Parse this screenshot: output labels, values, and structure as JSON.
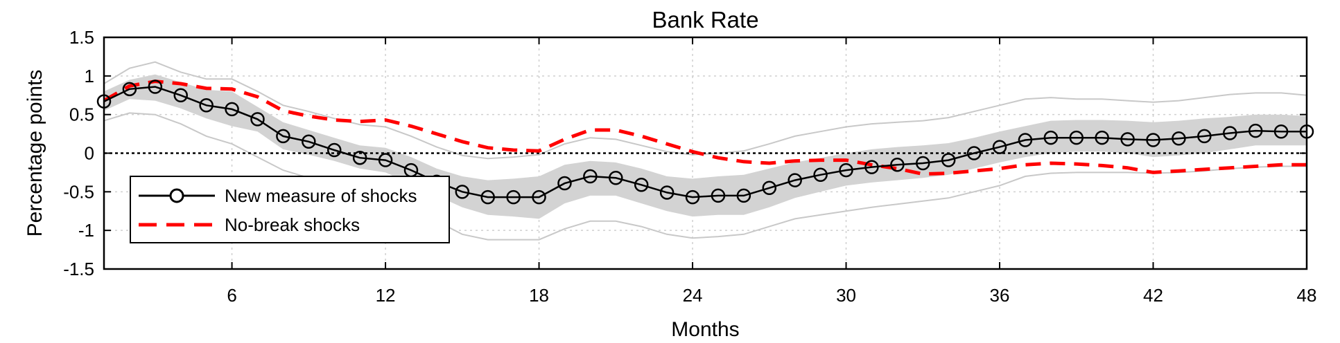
{
  "chart_data": {
    "type": "line",
    "title": "Bank Rate",
    "xlabel": "Months",
    "ylabel": "Percentage points",
    "xlim": [
      1,
      48
    ],
    "ylim": [
      -1.5,
      1.5
    ],
    "xticks": [
      6,
      12,
      18,
      24,
      30,
      36,
      42,
      48
    ],
    "yticks": [
      1.5,
      1,
      0.5,
      0,
      -0.5,
      -1,
      -1.5
    ],
    "ytick_labels": [
      "1.5",
      "1",
      "0.5",
      "0",
      "-0.5",
      "-1",
      "-1.5"
    ],
    "grid": true,
    "legend_position": "bottom-left",
    "x": [
      1,
      2,
      3,
      4,
      5,
      6,
      7,
      8,
      9,
      10,
      11,
      12,
      13,
      14,
      15,
      16,
      17,
      18,
      19,
      20,
      21,
      22,
      23,
      24,
      25,
      26,
      27,
      28,
      29,
      30,
      31,
      32,
      33,
      34,
      35,
      36,
      37,
      38,
      39,
      40,
      41,
      42,
      43,
      44,
      45,
      46,
      47,
      48
    ],
    "series": [
      {
        "name": "New measure of shocks",
        "color": "#000000",
        "style": "solid-circle-markers",
        "values": [
          0.67,
          0.83,
          0.86,
          0.75,
          0.62,
          0.57,
          0.44,
          0.22,
          0.15,
          0.04,
          -0.06,
          -0.09,
          -0.22,
          -0.37,
          -0.5,
          -0.57,
          -0.57,
          -0.57,
          -0.39,
          -0.3,
          -0.32,
          -0.41,
          -0.51,
          -0.57,
          -0.55,
          -0.55,
          -0.45,
          -0.35,
          -0.28,
          -0.22,
          -0.18,
          -0.15,
          -0.13,
          -0.09,
          0.0,
          0.08,
          0.17,
          0.2,
          0.2,
          0.2,
          0.18,
          0.17,
          0.19,
          0.22,
          0.26,
          0.29,
          0.28,
          0.28
        ]
      },
      {
        "name": "No-break shocks",
        "color": "#ff0000",
        "style": "dashed",
        "values": [
          0.68,
          0.87,
          0.93,
          0.9,
          0.84,
          0.83,
          0.73,
          0.55,
          0.48,
          0.43,
          0.41,
          0.43,
          0.35,
          0.25,
          0.15,
          0.07,
          0.04,
          0.03,
          0.18,
          0.3,
          0.3,
          0.22,
          0.12,
          0.02,
          -0.06,
          -0.11,
          -0.13,
          -0.1,
          -0.09,
          -0.09,
          -0.15,
          -0.2,
          -0.27,
          -0.26,
          -0.23,
          -0.2,
          -0.15,
          -0.13,
          -0.14,
          -0.16,
          -0.19,
          -0.25,
          -0.23,
          -0.21,
          -0.19,
          -0.17,
          -0.15,
          -0.15
        ]
      }
    ],
    "confidence_band": {
      "color": "#d3d3d3",
      "upper": [
        0.8,
        0.95,
        1.02,
        0.92,
        0.82,
        0.8,
        0.6,
        0.4,
        0.3,
        0.2,
        0.1,
        0.07,
        -0.05,
        -0.2,
        -0.3,
        -0.35,
        -0.33,
        -0.3,
        -0.15,
        -0.1,
        -0.12,
        -0.2,
        -0.3,
        -0.33,
        -0.3,
        -0.28,
        -0.2,
        -0.12,
        -0.06,
        0.0,
        0.05,
        0.08,
        0.1,
        0.13,
        0.2,
        0.28,
        0.35,
        0.42,
        0.43,
        0.43,
        0.42,
        0.4,
        0.42,
        0.45,
        0.47,
        0.5,
        0.5,
        0.48
      ],
      "lower": [
        0.55,
        0.7,
        0.68,
        0.58,
        0.45,
        0.35,
        0.28,
        0.05,
        -0.02,
        -0.1,
        -0.2,
        -0.25,
        -0.4,
        -0.55,
        -0.7,
        -0.8,
        -0.82,
        -0.85,
        -0.65,
        -0.55,
        -0.55,
        -0.65,
        -0.75,
        -0.82,
        -0.8,
        -0.8,
        -0.7,
        -0.58,
        -0.5,
        -0.42,
        -0.38,
        -0.35,
        -0.32,
        -0.28,
        -0.2,
        -0.12,
        -0.05,
        0.0,
        0.02,
        0.02,
        0.0,
        -0.05,
        -0.03,
        0.0,
        0.05,
        0.1,
        0.1,
        0.1
      ]
    },
    "outer_band": {
      "color": "#c8c8c8",
      "upper": [
        0.9,
        1.1,
        1.18,
        1.05,
        0.96,
        0.96,
        0.8,
        0.62,
        0.54,
        0.45,
        0.37,
        0.34,
        0.22,
        0.08,
        -0.03,
        -0.07,
        -0.05,
        -0.02,
        0.12,
        0.2,
        0.18,
        0.1,
        0.02,
        -0.02,
        0.0,
        0.03,
        0.12,
        0.22,
        0.28,
        0.34,
        0.38,
        0.4,
        0.42,
        0.46,
        0.54,
        0.62,
        0.7,
        0.72,
        0.7,
        0.7,
        0.68,
        0.66,
        0.68,
        0.72,
        0.76,
        0.78,
        0.78,
        0.75
      ],
      "lower": [
        0.42,
        0.52,
        0.5,
        0.38,
        0.22,
        0.12,
        -0.05,
        -0.22,
        -0.32,
        -0.4,
        -0.5,
        -0.55,
        -0.72,
        -0.88,
        -1.05,
        -1.12,
        -1.12,
        -1.12,
        -0.98,
        -0.88,
        -0.88,
        -0.95,
        -1.05,
        -1.1,
        -1.08,
        -1.05,
        -0.95,
        -0.85,
        -0.8,
        -0.75,
        -0.7,
        -0.66,
        -0.62,
        -0.58,
        -0.5,
        -0.42,
        -0.3,
        -0.26,
        -0.25,
        -0.25,
        -0.25,
        -0.26,
        -0.25,
        -0.23,
        -0.2,
        -0.18,
        -0.17,
        -0.17
      ]
    }
  }
}
